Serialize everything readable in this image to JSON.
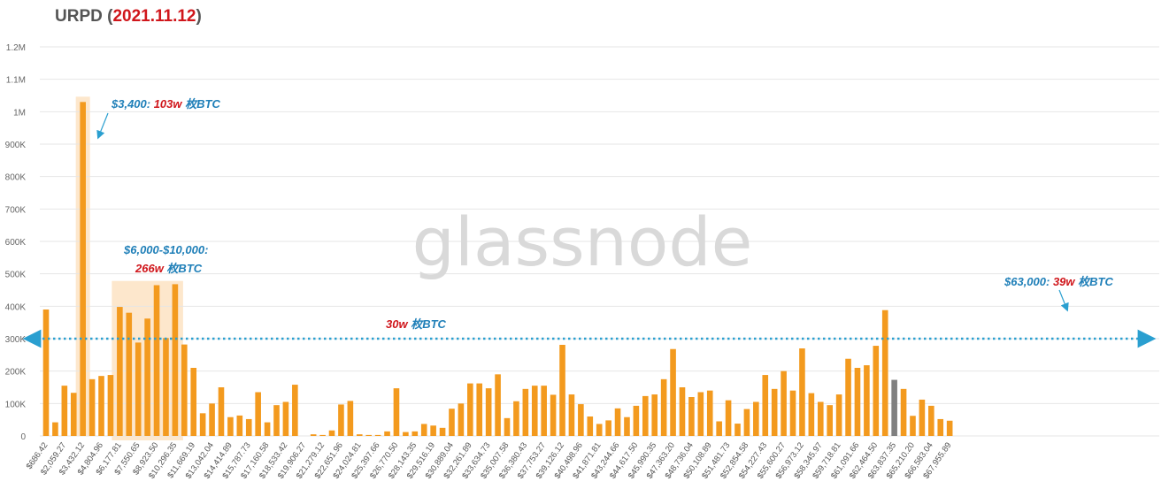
{
  "title": {
    "main": "URPD",
    "paren_open": " (",
    "date": "2021.11.12",
    "paren_close": ")"
  },
  "watermark": "glassnode",
  "colors": {
    "bar": "#f39a1e",
    "bar_current": "#808080",
    "highlight": "#fde7cc",
    "ref_line": "#2a9fd0",
    "annot_blue": "#1f7fb8",
    "annot_red": "#d0161b",
    "grid": "#e6e6e6",
    "title": "#555555"
  },
  "annotations": {
    "a3400": {
      "blue": "$3,400: ",
      "red": "103w",
      "suffix": " 枚BTC"
    },
    "a6000": {
      "line1": "$6,000-$10,000:",
      "red": "266w",
      "suffix": " 枚BTC"
    },
    "a63000": {
      "blue": "$63,000: ",
      "red": "39w",
      "suffix": " 枚BTC"
    },
    "ref": {
      "red": "30w",
      "suffix": " 枚BTC"
    }
  },
  "chart_data": {
    "type": "bar",
    "title": "URPD (2021.11.12)",
    "xlabel": "",
    "ylabel": "",
    "ylim": [
      0,
      1200000
    ],
    "grid": true,
    "yticks": [
      {
        "value": 0,
        "label": "0"
      },
      {
        "value": 100000,
        "label": "100K"
      },
      {
        "value": 200000,
        "label": "200K"
      },
      {
        "value": 300000,
        "label": "300K"
      },
      {
        "value": 400000,
        "label": "400K"
      },
      {
        "value": 500000,
        "label": "500K"
      },
      {
        "value": 600000,
        "label": "600K"
      },
      {
        "value": 700000,
        "label": "700K"
      },
      {
        "value": 800000,
        "label": "800K"
      },
      {
        "value": 900000,
        "label": "900K"
      },
      {
        "value": 1000000,
        "label": "1M"
      },
      {
        "value": 1100000,
        "label": "1.1M"
      },
      {
        "value": 1200000,
        "label": "1.2M"
      }
    ],
    "x_tick_labels": [
      "$686.42",
      "$2,059.27",
      "$3,432.12",
      "$4,804.96",
      "$6,177.81",
      "$7,550.65",
      "$8,923.50",
      "$10,296.35",
      "$11,669.19",
      "$13,042.04",
      "$14,414.89",
      "$15,787.73",
      "$17,160.58",
      "$18,533.42",
      "$19,906.27",
      "$21,279.12",
      "$22,651.96",
      "$24,024.81",
      "$25,397.66",
      "$26,770.50",
      "$28,143.35",
      "$29,516.19",
      "$30,889.04",
      "$32,261.89",
      "$33,634.73",
      "$35,007.58",
      "$36,380.43",
      "$37,753.27",
      "$39,126.12",
      "$40,498.96",
      "$41,871.81",
      "$43,244.66",
      "$44,617.50",
      "$45,990.35",
      "$47,363.20",
      "$48,736.04",
      "$50,108.89",
      "$51,481.73",
      "$52,854.58",
      "$54,227.43",
      "$55,600.27",
      "$56,973.12",
      "$58,345.97",
      "$59,718.81",
      "$61,091.66",
      "$62,464.50",
      "$63,837.35",
      "$65,210.20",
      "$66,583.04",
      "$67,955.89"
    ],
    "values": [
      390000,
      42000,
      155000,
      133000,
      1030000,
      175000,
      185000,
      188000,
      398000,
      380000,
      288000,
      362000,
      465000,
      302000,
      468000,
      282000,
      210000,
      70000,
      100000,
      150000,
      58000,
      63000,
      52000,
      135000,
      42000,
      95000,
      105000,
      158000,
      0,
      5000,
      3000,
      17000,
      97000,
      108000,
      5000,
      3000,
      3000,
      14000,
      147000,
      12000,
      14000,
      37000,
      32000,
      25000,
      84000,
      100000,
      162000,
      162000,
      147000,
      190000,
      55000,
      107000,
      145000,
      155000,
      155000,
      127000,
      281000,
      128000,
      98000,
      60000,
      37000,
      48000,
      85000,
      58000,
      93000,
      123000,
      128000,
      175000,
      268000,
      150000,
      120000,
      135000,
      140000,
      45000,
      110000,
      38000,
      83000,
      105000,
      188000,
      145000,
      200000,
      140000,
      270000,
      132000,
      105000,
      95000,
      128000,
      238000,
      210000,
      218000,
      278000,
      388000,
      173000,
      145000,
      62000,
      112000,
      93000,
      52000,
      47000
    ],
    "current_price_bar_index": 92,
    "reference_line": {
      "value": 300000
    }
  }
}
